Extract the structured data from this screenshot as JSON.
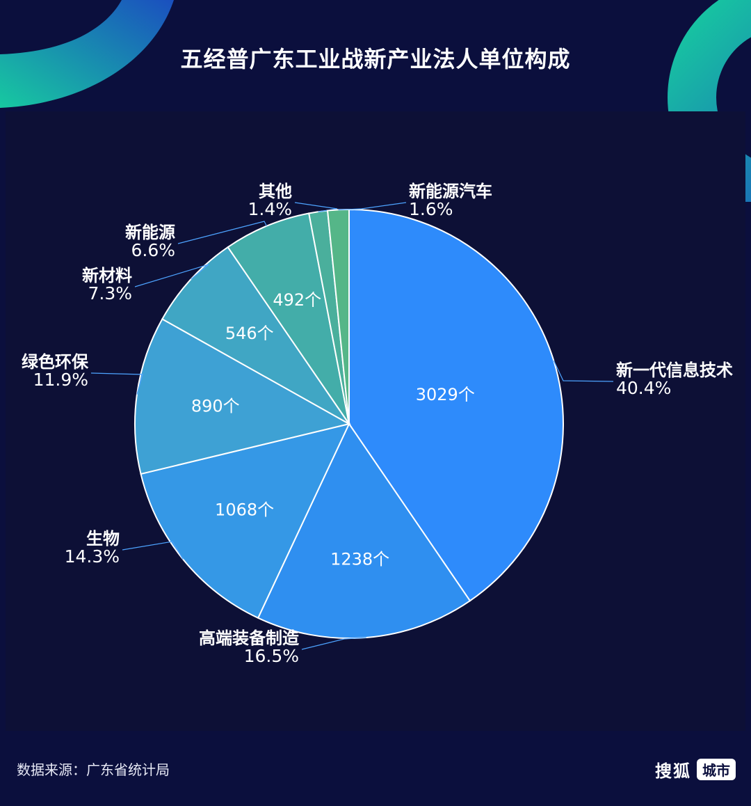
{
  "title": "五经普广东工业战新产业法人单位构成",
  "source": "数据来源：广东省统计局",
  "brand": {
    "name": "搜狐",
    "tag": "城市"
  },
  "colors": {
    "background": "#0b0f3d",
    "accent_teal": "#19c9a6",
    "leader_line": "#4da3ff"
  },
  "chart_data": {
    "type": "pie",
    "start_angle_deg": 0,
    "slices": [
      {
        "name": "新一代信息技术",
        "count_label": "3029个",
        "percent_label": "40.4%",
        "value": 3029,
        "color": "#2e8bfb"
      },
      {
        "name": "高端装备制造",
        "count_label": "1238个",
        "percent_label": "16.5%",
        "value": 1238,
        "color": "#2f8ff0"
      },
      {
        "name": "生物",
        "count_label": "1068个",
        "percent_label": "14.3%",
        "value": 1068,
        "color": "#3598e6"
      },
      {
        "name": "绿色环保",
        "count_label": "890个",
        "percent_label": "11.9%",
        "value": 890,
        "color": "#3ea1d4"
      },
      {
        "name": "新材料",
        "count_label": "546个",
        "percent_label": "7.3%",
        "value": 546,
        "color": "#40a6c4"
      },
      {
        "name": "新能源",
        "count_label": "492个",
        "percent_label": "6.6%",
        "value": 492,
        "color": "#43ada9"
      },
      {
        "name": "其他",
        "count_label": "",
        "percent_label": "1.4%",
        "value": 105,
        "color": "#4aaf9c"
      },
      {
        "name": "新能源汽车",
        "count_label": "",
        "percent_label": "1.6%",
        "value": 120,
        "color": "#55b688"
      }
    ]
  }
}
